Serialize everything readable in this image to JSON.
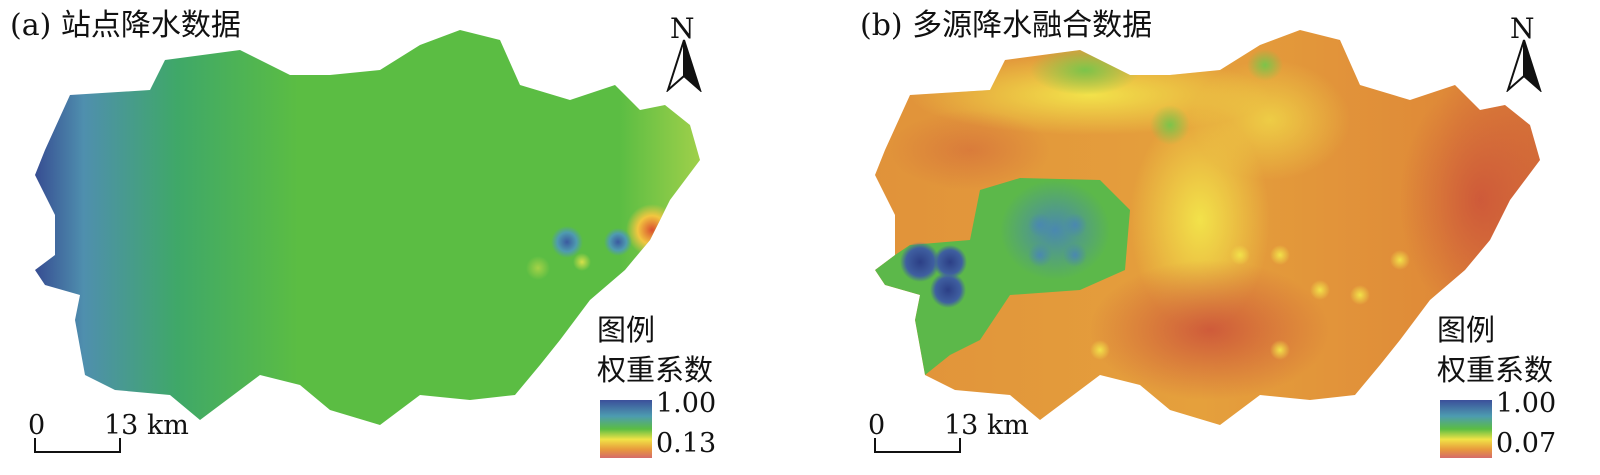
{
  "panels": [
    {
      "title": "(a) 站点降水数据",
      "north_label": "N",
      "legend": {
        "title": "图例",
        "subtitle": "权重系数",
        "max": "1.00",
        "min": "0.13"
      },
      "scale": {
        "zero": "0",
        "distance": "13 km"
      }
    },
    {
      "title": "(b) 多源降水融合数据",
      "north_label": "N",
      "legend": {
        "title": "图例",
        "subtitle": "权重系数",
        "max": "1.00",
        "min": "0.07"
      },
      "scale": {
        "zero": "0",
        "distance": "13 km"
      }
    }
  ],
  "colors": {
    "high": "#3b4f9a",
    "mid_blue": "#4d8fb0",
    "mid": "#56b84a",
    "yellow": "#f1e347",
    "orange": "#e89a3c",
    "low": "#c94a3a"
  }
}
